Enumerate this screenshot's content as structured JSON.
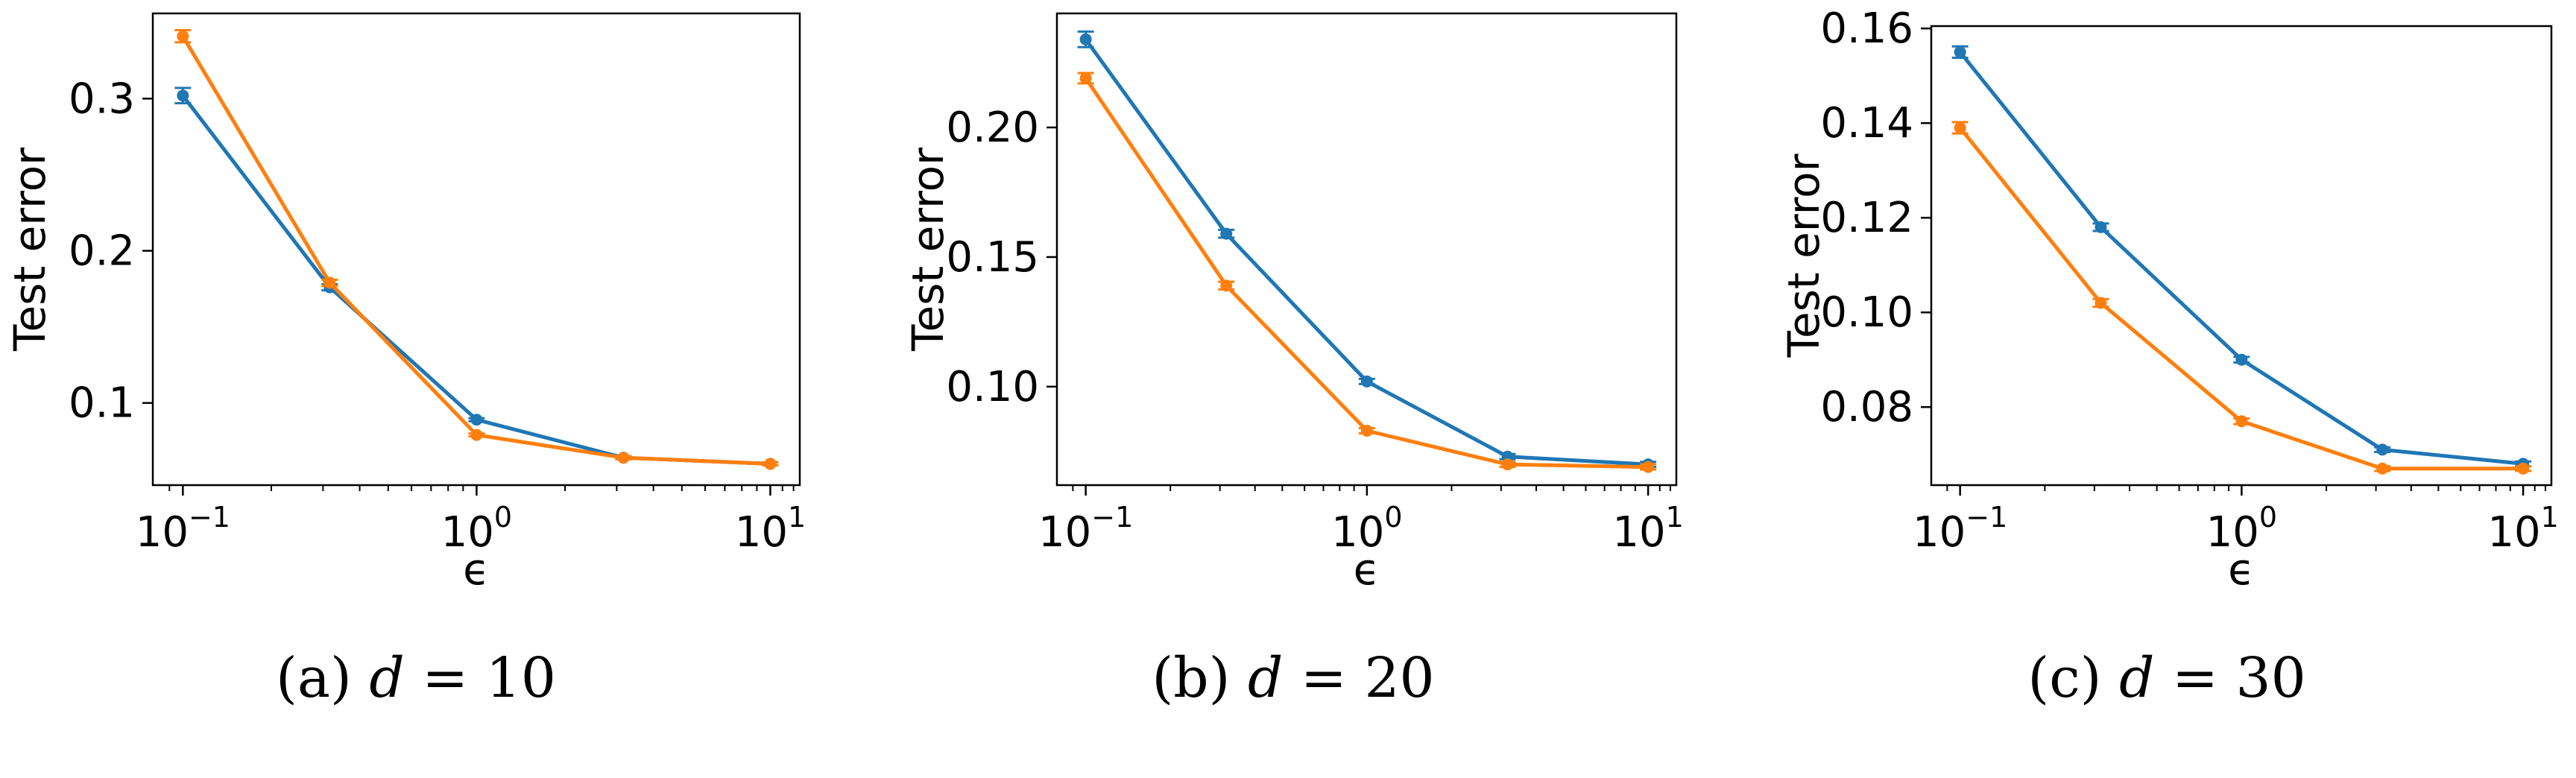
{
  "chart_data": [
    {
      "type": "line",
      "caption_label": "(a)",
      "caption_var": "d",
      "caption_value": "10",
      "xlabel": "ϵ",
      "ylabel": "Test error",
      "xscale": "log",
      "xlim": [
        0.079,
        12.6
      ],
      "ylim": [
        0.046,
        0.356
      ],
      "x": [
        0.1,
        0.3162,
        1,
        3.162,
        10
      ],
      "xticks": [
        {
          "value": 0.1,
          "exp": "−1"
        },
        {
          "value": 1,
          "exp": "0"
        },
        {
          "value": 10,
          "exp": "1"
        }
      ],
      "yticks": [
        {
          "value": 0.1,
          "label": "0.1"
        },
        {
          "value": 0.2,
          "label": "0.2"
        },
        {
          "value": 0.3,
          "label": "0.3"
        }
      ],
      "series": [
        {
          "color": "#1f77b4",
          "values": [
            0.302,
            0.176,
            0.089,
            0.064,
            0.06
          ],
          "errors": [
            0.005,
            0.002,
            0.001,
            0.001,
            0.001
          ]
        },
        {
          "color": "#ff7f0e",
          "values": [
            0.341,
            0.179,
            0.079,
            0.064,
            0.06
          ],
          "errors": [
            0.004,
            0.002,
            0.001,
            0.001,
            0.001
          ]
        }
      ],
      "grid": false,
      "legend": "none"
    },
    {
      "type": "line",
      "caption_label": "(b)",
      "caption_var": "d",
      "caption_value": "20",
      "xlabel": "ϵ",
      "ylabel": "Test error",
      "xscale": "log",
      "xlim": [
        0.079,
        12.6
      ],
      "ylim": [
        0.062,
        0.244
      ],
      "x": [
        0.1,
        0.3162,
        1,
        3.162,
        10
      ],
      "xticks": [
        {
          "value": 0.1,
          "exp": "−1"
        },
        {
          "value": 1,
          "exp": "0"
        },
        {
          "value": 10,
          "exp": "1"
        }
      ],
      "yticks": [
        {
          "value": 0.1,
          "label": "0.10"
        },
        {
          "value": 0.15,
          "label": "0.15"
        },
        {
          "value": 0.2,
          "label": "0.20"
        }
      ],
      "series": [
        {
          "color": "#1f77b4",
          "values": [
            0.234,
            0.159,
            0.102,
            0.073,
            0.07
          ],
          "errors": [
            0.003,
            0.0015,
            0.001,
            0.001,
            0.001
          ]
        },
        {
          "color": "#ff7f0e",
          "values": [
            0.219,
            0.139,
            0.083,
            0.07,
            0.069
          ],
          "errors": [
            0.002,
            0.0015,
            0.001,
            0.001,
            0.001
          ]
        }
      ],
      "grid": false,
      "legend": "none"
    },
    {
      "type": "line",
      "caption_label": "(c)",
      "caption_var": "d",
      "caption_value": "30",
      "xlabel": "ϵ",
      "ylabel": "Test error",
      "xscale": "log",
      "xlim": [
        0.079,
        12.6
      ],
      "ylim": [
        0.0635,
        0.1605
      ],
      "x": [
        0.1,
        0.3162,
        1,
        3.162,
        10
      ],
      "xticks": [
        {
          "value": 0.1,
          "exp": "−1"
        },
        {
          "value": 1,
          "exp": "0"
        },
        {
          "value": 10,
          "exp": "1"
        }
      ],
      "yticks": [
        {
          "value": 0.08,
          "label": "0.08"
        },
        {
          "value": 0.1,
          "label": "0.10"
        },
        {
          "value": 0.12,
          "label": "0.12"
        },
        {
          "value": 0.14,
          "label": "0.14"
        },
        {
          "value": 0.16,
          "label": "0.16"
        }
      ],
      "series": [
        {
          "color": "#1f77b4",
          "values": [
            0.155,
            0.118,
            0.09,
            0.071,
            0.068
          ],
          "errors": [
            0.0012,
            0.0008,
            0.0006,
            0.0005,
            0.0005
          ]
        },
        {
          "color": "#ff7f0e",
          "values": [
            0.139,
            0.102,
            0.077,
            0.067,
            0.067
          ],
          "errors": [
            0.0012,
            0.0008,
            0.0006,
            0.0005,
            0.0005
          ]
        }
      ],
      "grid": false,
      "legend": "none"
    }
  ]
}
